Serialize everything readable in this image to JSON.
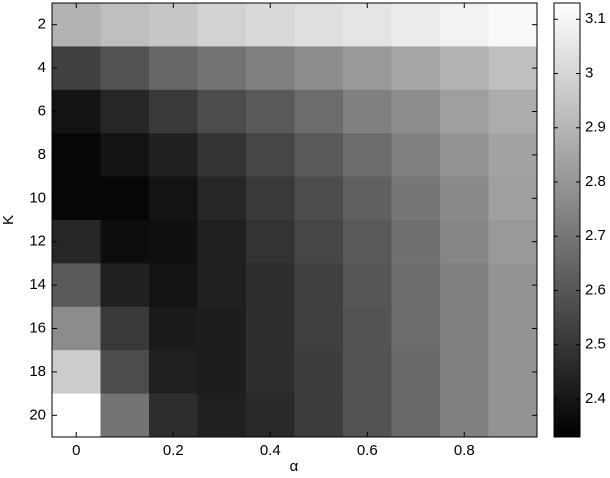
{
  "chart_data": {
    "type": "heatmap",
    "colormap": "gray",
    "x_label": "α",
    "y_label": "K",
    "x": [
      0,
      0.1,
      0.2,
      0.3,
      0.4,
      0.5,
      0.6,
      0.7,
      0.8,
      0.9
    ],
    "y": [
      2,
      4,
      6,
      8,
      10,
      12,
      14,
      16,
      18,
      20
    ],
    "z": [
      [
        2.89,
        2.93,
        2.95,
        2.99,
        3.01,
        3.03,
        3.05,
        3.07,
        3.09,
        3.11
      ],
      [
        2.53,
        2.59,
        2.65,
        2.69,
        2.73,
        2.77,
        2.81,
        2.85,
        2.89,
        2.93
      ],
      [
        2.39,
        2.45,
        2.51,
        2.57,
        2.61,
        2.67,
        2.73,
        2.77,
        2.83,
        2.87
      ],
      [
        2.35,
        2.39,
        2.43,
        2.49,
        2.55,
        2.61,
        2.67,
        2.73,
        2.79,
        2.84
      ],
      [
        2.35,
        2.35,
        2.39,
        2.45,
        2.51,
        2.57,
        2.63,
        2.7,
        2.76,
        2.83
      ],
      [
        2.45,
        2.37,
        2.38,
        2.43,
        2.49,
        2.55,
        2.61,
        2.68,
        2.75,
        2.81
      ],
      [
        2.61,
        2.43,
        2.39,
        2.43,
        2.47,
        2.53,
        2.6,
        2.67,
        2.73,
        2.79
      ],
      [
        2.77,
        2.51,
        2.41,
        2.42,
        2.47,
        2.53,
        2.59,
        2.67,
        2.73,
        2.79
      ],
      [
        2.97,
        2.57,
        2.43,
        2.42,
        2.47,
        2.52,
        2.59,
        2.66,
        2.73,
        2.79
      ],
      [
        3.13,
        2.69,
        2.47,
        2.43,
        2.46,
        2.52,
        2.59,
        2.66,
        2.73,
        2.79
      ]
    ],
    "xlim": [
      -0.05,
      0.95
    ],
    "ylim": [
      1,
      21
    ],
    "xticks": [
      0,
      0.2,
      0.4,
      0.6,
      0.8
    ],
    "yticks": [
      2,
      4,
      6,
      8,
      10,
      12,
      14,
      16,
      18,
      20
    ],
    "clim": [
      2.33,
      3.13
    ],
    "cticks": [
      2.4,
      2.5,
      2.6,
      2.7,
      2.8,
      2.9,
      3,
      3.1
    ]
  }
}
